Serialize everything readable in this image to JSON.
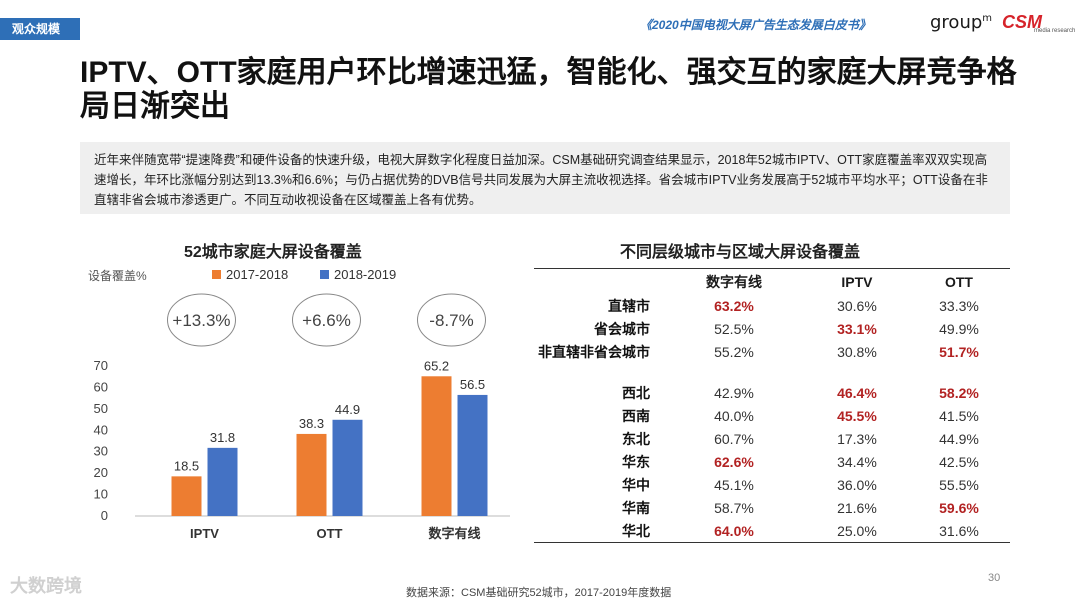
{
  "header": {
    "section_tag": "观众规模",
    "report_title": "《2020中国电视大屏广告生态发展白皮书》",
    "logo_group": "group",
    "logo_group_sup": "m",
    "logo_csm": "CSM",
    "logo_csm_sub": "media research"
  },
  "headline": "IPTV、OTT家庭用户环比增速迅猛，智能化、强交互的家庭大屏竞争格局日渐突出",
  "summary": "近年来伴随宽带“提速降费”和硬件设备的快速升级，电视大屏数字化程度日益加深。CSM基础研究调查结果显示，2018年52城市IPTV、OTT家庭覆盖率双双实现高速增长，年环比涨幅分别达到13.3%和6.6%；与仍占据优势的DVB信号共同发展为大屏主流收视选择。省会城市IPTV业务发展高于52城市平均水平；OTT设备在非直辖非省会城市渗透更广。不同互动收视设备在区域覆盖上各有优势。",
  "chart_data": {
    "type": "bar",
    "title": "52城市家庭大屏设备覆盖",
    "ylabel": "设备覆盖%",
    "categories": [
      "IPTV",
      "OTT",
      "数字有线"
    ],
    "series": [
      {
        "name": "2017-2018",
        "values": [
          18.5,
          38.3,
          65.2
        ],
        "color": "#ed7d31"
      },
      {
        "name": "2018-2019",
        "values": [
          31.8,
          44.9,
          56.5
        ],
        "color": "#4472c4"
      }
    ],
    "ylim": [
      0,
      70
    ],
    "yticks": [
      0,
      10,
      20,
      30,
      40,
      50,
      60,
      70
    ],
    "growth_labels": [
      "+13.3%",
      "+6.6%",
      "-8.7%"
    ],
    "legend": "top"
  },
  "table": {
    "title": "不同层级城市与区域大屏设备覆盖",
    "headers": [
      "",
      "数字有线",
      "IPTV",
      "OTT"
    ],
    "groups": [
      [
        {
          "label": "直辖市",
          "values": [
            "63.2%",
            "30.6%",
            "33.3%"
          ],
          "highlight": [
            0
          ]
        },
        {
          "label": "省会城市",
          "values": [
            "52.5%",
            "33.1%",
            "49.9%"
          ],
          "highlight": [
            1
          ]
        },
        {
          "label": "非直辖非省会城市",
          "values": [
            "55.2%",
            "30.8%",
            "51.7%"
          ],
          "highlight": [
            2
          ]
        }
      ],
      [
        {
          "label": "西北",
          "values": [
            "42.9%",
            "46.4%",
            "58.2%"
          ],
          "highlight": [
            1,
            2
          ]
        },
        {
          "label": "西南",
          "values": [
            "40.0%",
            "45.5%",
            "41.5%"
          ],
          "highlight": [
            1
          ]
        },
        {
          "label": "东北",
          "values": [
            "60.7%",
            "17.3%",
            "44.9%"
          ],
          "highlight": []
        },
        {
          "label": "华东",
          "values": [
            "62.6%",
            "34.4%",
            "42.5%"
          ],
          "highlight": [
            0
          ]
        },
        {
          "label": "华中",
          "values": [
            "45.1%",
            "36.0%",
            "55.5%"
          ],
          "highlight": []
        },
        {
          "label": "华南",
          "values": [
            "58.7%",
            "21.6%",
            "59.6%"
          ],
          "highlight": [
            2
          ]
        },
        {
          "label": "华北",
          "values": [
            "64.0%",
            "25.0%",
            "31.6%"
          ],
          "highlight": [
            0
          ]
        }
      ]
    ]
  },
  "footer": {
    "source": "数据来源：CSM基础研究52城市，2017-2019年度数据",
    "page_number": "30",
    "watermark": "大数跨境"
  }
}
